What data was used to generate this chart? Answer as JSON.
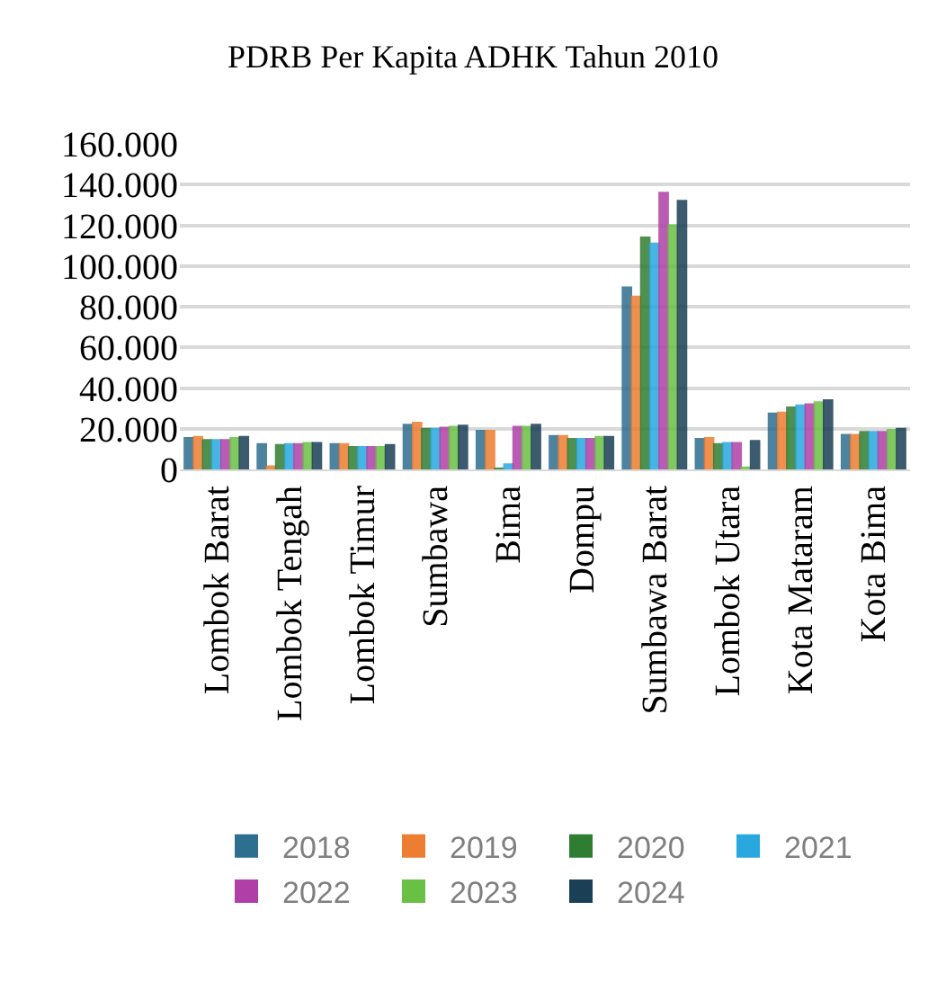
{
  "chart_data": {
    "type": "bar",
    "title": "PDRB Per Kapita ADHK Tahun 2010",
    "categories": [
      "Lombok Barat",
      "Lombok Tengah",
      "Lombok Timur",
      "Sumbawa",
      "Bima",
      "Dompu",
      "Sumbawa Barat",
      "Lombok Utara",
      "Kota Mataram",
      "Kota Bima"
    ],
    "series": [
      {
        "name": "2018",
        "color": "#2e6e8e",
        "values": [
          15500,
          12500,
          12500,
          22000,
          19000,
          16500,
          89500,
          15000,
          27500,
          17000
        ]
      },
      {
        "name": "2019",
        "color": "#ed7d31",
        "values": [
          16000,
          1500,
          12500,
          23000,
          19000,
          16500,
          85000,
          15500,
          28000,
          17000
        ]
      },
      {
        "name": "2020",
        "color": "#2e7d32",
        "values": [
          14500,
          12000,
          11000,
          20000,
          500,
          15000,
          114000,
          12500,
          30500,
          18500
        ]
      },
      {
        "name": "2021",
        "color": "#29a8e0",
        "values": [
          14500,
          12500,
          11000,
          20000,
          2500,
          15000,
          111000,
          13000,
          31500,
          18500
        ]
      },
      {
        "name": "2022",
        "color": "#b040a8",
        "values": [
          14500,
          12500,
          11000,
          20500,
          21000,
          15000,
          136000,
          13000,
          32000,
          18500
        ]
      },
      {
        "name": "2023",
        "color": "#6abf45",
        "values": [
          15500,
          13000,
          11000,
          21000,
          21000,
          16000,
          120000,
          1000,
          33000,
          19500
        ]
      },
      {
        "name": "2024",
        "color": "#1b3f55",
        "values": [
          16000,
          13000,
          12000,
          21500,
          22000,
          16000,
          132000,
          14000,
          34000,
          20000
        ]
      }
    ],
    "ylim": [
      0,
      160000
    ],
    "yticks": [
      0,
      {
        "value": 20000,
        "label": "20.000"
      },
      {
        "value": 40000,
        "label": "40.000"
      },
      {
        "value": 60000,
        "label": "60.000"
      },
      {
        "value": 80000,
        "label": "80.000"
      },
      {
        "value": 100000,
        "label": "100.000"
      },
      {
        "value": 120000,
        "label": "120.000"
      },
      {
        "value": 140000,
        "label": "140.000"
      },
      {
        "value": 160000,
        "label": "160.000"
      }
    ],
    "grid": "y",
    "legend": "bottom"
  }
}
